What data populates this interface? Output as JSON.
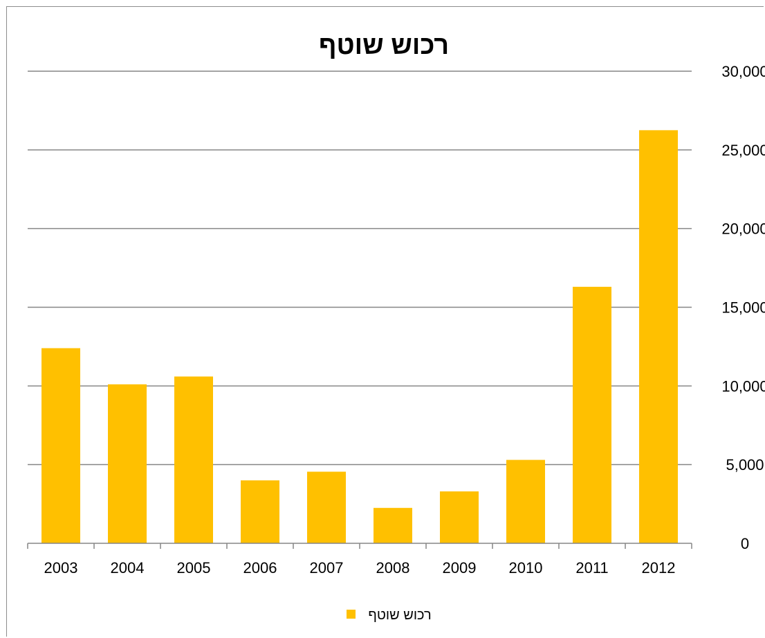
{
  "chart_data": {
    "type": "bar",
    "title": "רכוש שוטף",
    "categories": [
      "2003",
      "2004",
      "2005",
      "2006",
      "2007",
      "2008",
      "2009",
      "2010",
      "2011",
      "2012"
    ],
    "series": [
      {
        "name": "רכוש שוטף",
        "color": "#FFC000",
        "values": [
          12400,
          10100,
          10600,
          4000,
          4550,
          2250,
          3300,
          5300,
          16300,
          26250
        ]
      }
    ],
    "ylim": [
      0,
      30000
    ],
    "yticks": [
      "0",
      "5,000",
      "10,000",
      "15,000",
      "20,000",
      "25,000",
      "30,000"
    ],
    "ytick_values": [
      0,
      5000,
      10000,
      15000,
      20000,
      25000,
      30000
    ],
    "yaxis_side": "right",
    "grid": true,
    "legend_position": "bottom"
  }
}
